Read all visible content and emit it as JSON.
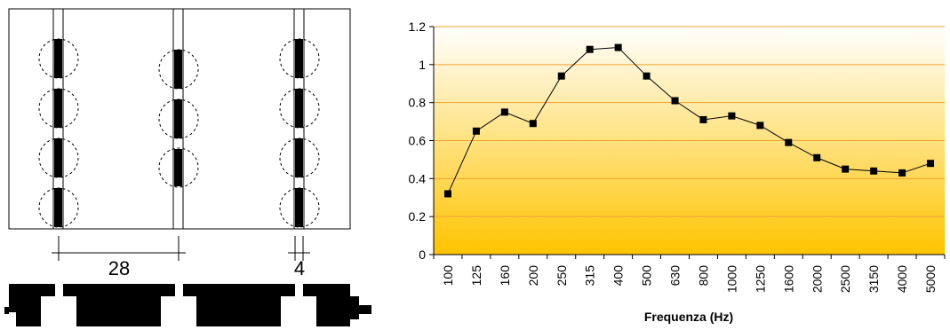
{
  "diagram": {
    "dimension_left": "28",
    "dimension_right": "4"
  },
  "chart_data": {
    "type": "line",
    "title": "",
    "xlabel": "Frequenza (Hz)",
    "ylabel": "",
    "categories": [
      "100",
      "125",
      "160",
      "200",
      "250",
      "315",
      "400",
      "500",
      "630",
      "800",
      "1000",
      "1250",
      "1600",
      "2000",
      "2500",
      "3150",
      "4000",
      "5000"
    ],
    "series": [
      {
        "values": [
          0.32,
          0.65,
          0.75,
          0.69,
          0.94,
          1.08,
          1.09,
          0.94,
          0.81,
          0.71,
          0.73,
          0.68,
          0.59,
          0.51,
          0.45,
          0.44,
          0.43,
          0.48
        ]
      }
    ],
    "ylim": [
      0,
      1.2
    ],
    "yticks": [
      "0",
      "0.2",
      "0.4",
      "0.6",
      "0.8",
      "1",
      "1.2"
    ],
    "grid": true,
    "colors": {
      "line": "#000000",
      "gridline": "#F0A030",
      "bg_top": "#FFFFFF",
      "bg_bottom": "#FFC400"
    }
  }
}
